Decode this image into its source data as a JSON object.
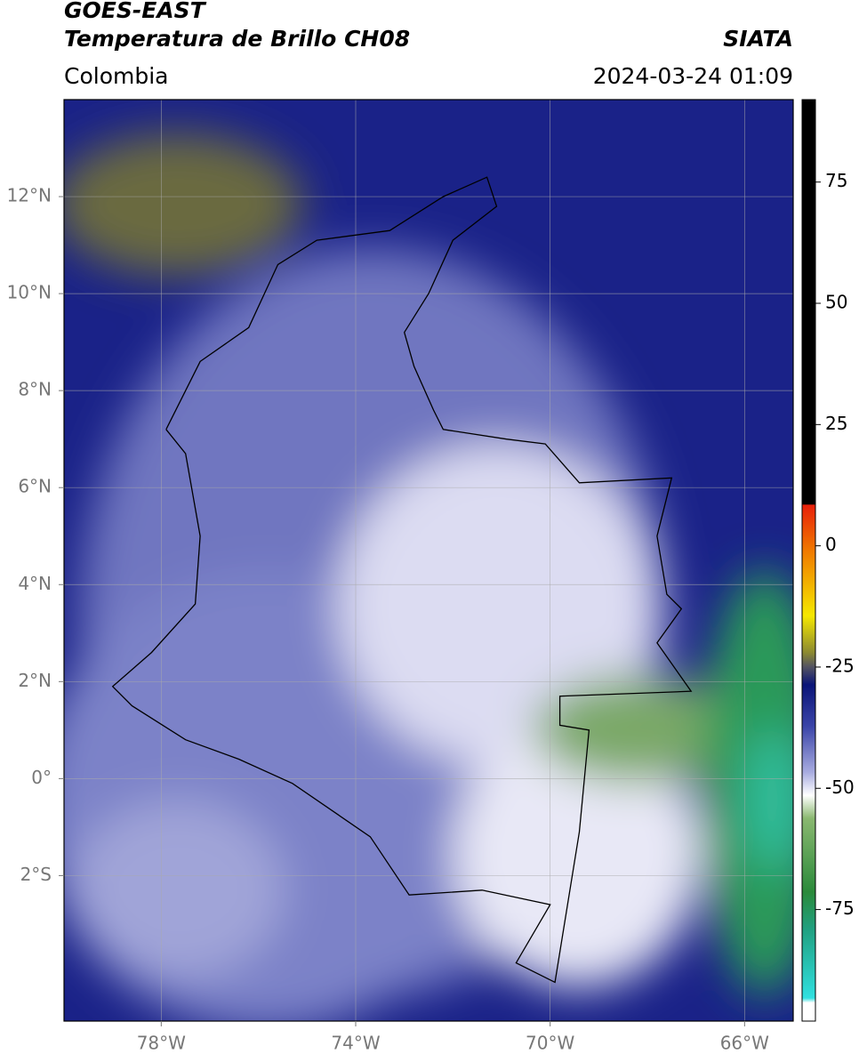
{
  "header": {
    "title": "GOES-EAST",
    "subtitle": "Temperatura de Brillo CH08",
    "source": "SIATA",
    "region": "Colombia",
    "datetime": "2024-03-24 01:09"
  },
  "map": {
    "xlim": [
      -80,
      -65
    ],
    "ylim": [
      -5,
      14
    ],
    "xticks": [
      {
        "value": -78,
        "label": "78°W"
      },
      {
        "value": -74,
        "label": "74°W"
      },
      {
        "value": -70,
        "label": "70°W"
      },
      {
        "value": -66,
        "label": "66°W"
      }
    ],
    "yticks": [
      {
        "value": -2,
        "label": "2°S"
      },
      {
        "value": 0,
        "label": "0°"
      },
      {
        "value": 2,
        "label": "2°N"
      },
      {
        "value": 4,
        "label": "4°N"
      },
      {
        "value": 6,
        "label": "6°N"
      },
      {
        "value": 8,
        "label": "8°N"
      },
      {
        "value": 10,
        "label": "10°N"
      },
      {
        "value": 12,
        "label": "12°N"
      }
    ],
    "grid": true
  },
  "colorbar": {
    "lim": [
      -98,
      92
    ],
    "ticks": [
      -75,
      -50,
      -25,
      0,
      25,
      50,
      75
    ]
  }
}
